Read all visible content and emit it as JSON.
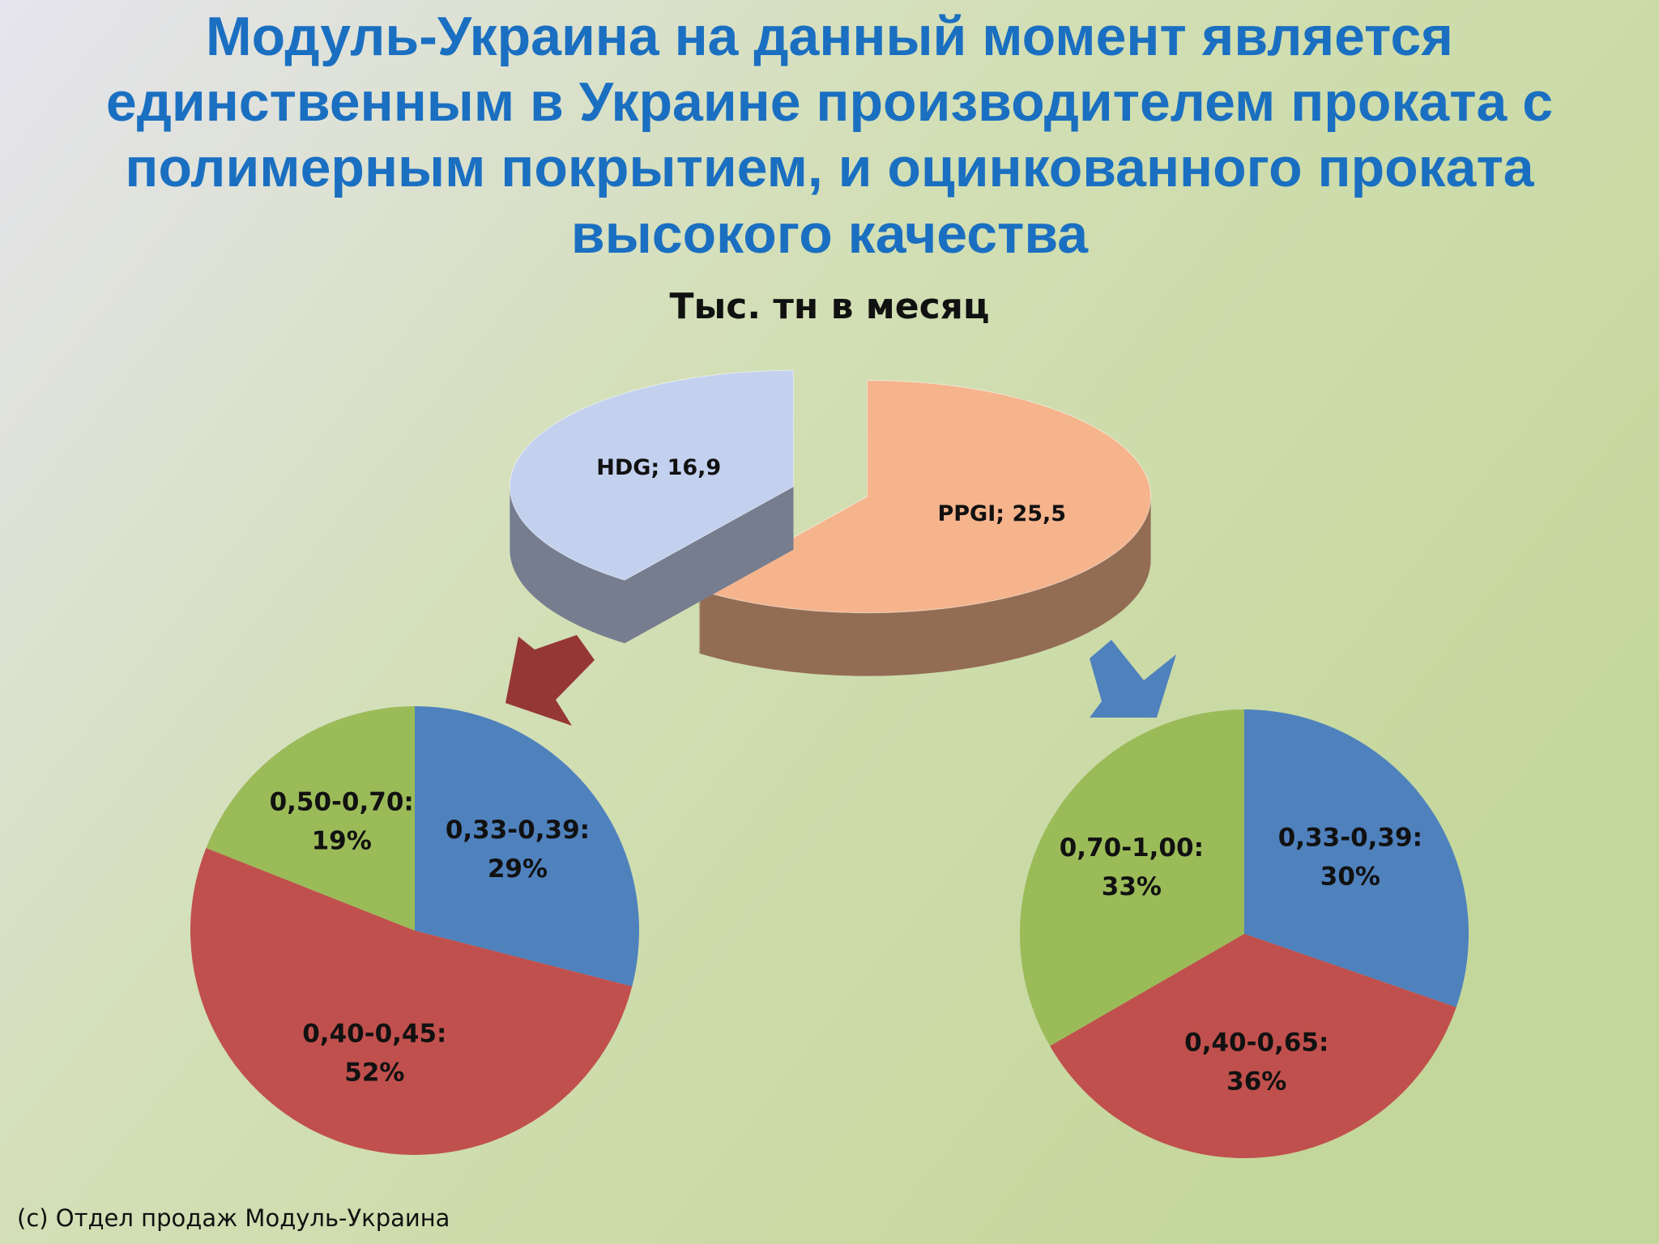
{
  "title_lines": [
    "Модуль-Украина на данный момент является",
    "единственным в Украине производителем проката с",
    "полимерным покрытием, и оцинкованного проката",
    "высокого качества"
  ],
  "chart_data": [
    {
      "type": "pie",
      "three_d": true,
      "exploded": true,
      "title": "Тыс. тн в месяц",
      "categories": [
        "PPGI",
        "HDG"
      ],
      "values": [
        25.5,
        16.9
      ],
      "value_labels": [
        "PPGI; 25,5",
        "HDG; 16,9"
      ],
      "colors": [
        "#f5b48c",
        "#c3d1ef"
      ]
    },
    {
      "type": "pie",
      "categories": [
        "0,33-0,39:",
        "0,40-0,45:",
        "0,50-0,70:"
      ],
      "values": [
        29,
        52,
        19
      ],
      "value_labels": [
        "29%",
        "52%",
        "19%"
      ],
      "colors": [
        "#4f81bd",
        "#c0504d",
        "#9bbb59"
      ]
    },
    {
      "type": "pie",
      "categories": [
        "0,33-0,39:",
        "0,40-0,65:",
        "0,70-1,00:"
      ],
      "values": [
        30,
        36,
        33
      ],
      "value_labels": [
        "30%",
        "36%",
        "33%"
      ],
      "colors": [
        "#4f81bd",
        "#c0504d",
        "#9bbb59"
      ]
    }
  ],
  "footer": "(c) Отдел продаж Модуль-Украина"
}
